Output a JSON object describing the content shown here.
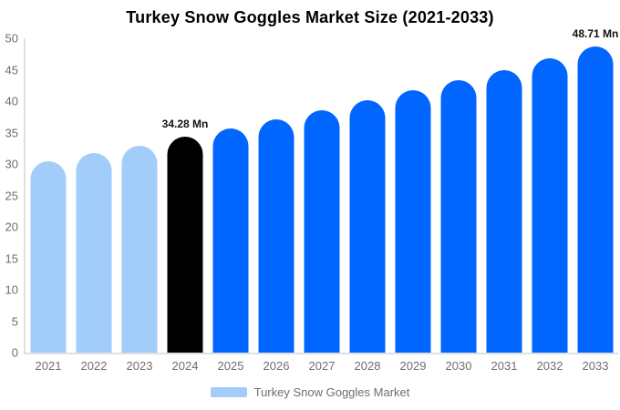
{
  "title": "Turkey Snow Goggles Market Size (2021-2033)",
  "legend": {
    "label": "Turkey Snow Goggles Market",
    "swatch_color": "#a2ccfa"
  },
  "colors": {
    "background": "#ffffff",
    "historical_bar": "#a2ccfa",
    "base_year_bar": "#000000",
    "forecast_bar": "#0066ff",
    "axis_line": "#e0e0e0",
    "axis_text": "#6e6e6e",
    "annotation_text": "#111111",
    "title_text": "#000000"
  },
  "chart_data": {
    "type": "bar",
    "title": "Turkey Snow Goggles Market Size (2021-2033)",
    "unit": "Mn",
    "categories": [
      "2021",
      "2022",
      "2023",
      "2024",
      "2025",
      "2026",
      "2027",
      "2028",
      "2029",
      "2030",
      "2031",
      "2032",
      "2033"
    ],
    "values": [
      30.5,
      31.7,
      32.9,
      34.28,
      35.7,
      37.1,
      38.5,
      40.1,
      41.8,
      43.4,
      44.9,
      46.8,
      48.71
    ],
    "bar_colors": [
      "#a2ccfa",
      "#a2ccfa",
      "#a2ccfa",
      "#000000",
      "#0066ff",
      "#0066ff",
      "#0066ff",
      "#0066ff",
      "#0066ff",
      "#0066ff",
      "#0066ff",
      "#0066ff",
      "#0066ff"
    ],
    "data_labels": [
      {
        "category": "2024",
        "text": "34.28 Mn"
      },
      {
        "category": "2033",
        "text": "48.71 Mn"
      }
    ],
    "xlabel": "",
    "ylabel": "",
    "ylim": [
      0,
      50
    ],
    "yticks": [
      0,
      5,
      10,
      15,
      20,
      25,
      30,
      35,
      40,
      45,
      50
    ],
    "grid": false,
    "legend_position": "bottom",
    "legend_entries": [
      "Turkey Snow Goggles Market"
    ]
  }
}
